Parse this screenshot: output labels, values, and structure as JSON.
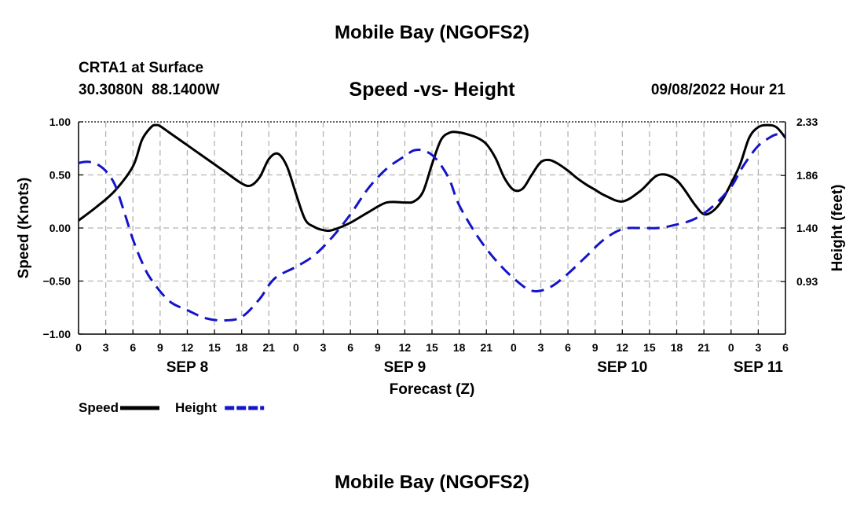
{
  "header": {
    "title_top": "Mobile Bay (NGOFS2)",
    "station": "CRTA1 at Surface",
    "coords": "30.3080N  88.1400W",
    "chart_title": "Speed -vs- Height",
    "timestamp": "09/08/2022 Hour 21",
    "title_bottom": "Mobile Bay (NGOFS2)"
  },
  "chart_data": {
    "type": "line",
    "xlabel": "Forecast (Z)",
    "ylabel_left": "Speed (Knots)",
    "ylabel_right": "Height (feet)",
    "xlim_hours": [
      0,
      78
    ],
    "x_tick_hours": [
      0,
      3,
      6,
      9,
      12,
      15,
      18,
      21,
      24,
      27,
      30,
      33,
      36,
      39,
      42,
      45,
      48,
      51,
      54,
      57,
      60,
      63,
      66,
      69,
      72,
      75,
      78
    ],
    "x_tick_labels": [
      "0",
      "3",
      "6",
      "9",
      "12",
      "15",
      "18",
      "21",
      "0",
      "3",
      "6",
      "9",
      "12",
      "15",
      "18",
      "21",
      "0",
      "3",
      "6",
      "9",
      "12",
      "15",
      "18",
      "21",
      "0",
      "3",
      "6"
    ],
    "date_labels": [
      {
        "hour": 12,
        "label": "SEP 8"
      },
      {
        "hour": 36,
        "label": "SEP 9"
      },
      {
        "hour": 60,
        "label": "SEP 10"
      },
      {
        "hour": 75,
        "label": "SEP 11"
      }
    ],
    "ylim_left": [
      -1.0,
      1.0
    ],
    "y_ticks_left": [
      -1.0,
      -0.5,
      0.0,
      0.5,
      1.0
    ],
    "y_tick_labels_left": [
      "−1.00",
      "−0.50",
      "0.00",
      "0.50",
      "1.00"
    ],
    "ylim_right": [
      0.47,
      2.33
    ],
    "y_ticks_right": [
      0.93,
      1.4,
      1.86,
      2.33
    ],
    "y_tick_labels_right": [
      "0.93",
      "1.40",
      "1.86",
      "2.33"
    ],
    "grid": true,
    "legend_placement": "bottom-left",
    "series": [
      {
        "name": "Speed",
        "axis": "left",
        "color": "#000000",
        "dash": "solid",
        "x": [
          0,
          2,
          4,
          6,
          7,
          8,
          8.5,
          9,
          10,
          12,
          14,
          16,
          18,
          19,
          20,
          21,
          22,
          23,
          24,
          25,
          26,
          27,
          28,
          30,
          32,
          34,
          36,
          37,
          38,
          39,
          40,
          41,
          42,
          43,
          44,
          45,
          46,
          47,
          48,
          49,
          50,
          51,
          52,
          53,
          54,
          55,
          56,
          57,
          58,
          60,
          62,
          64,
          66,
          68,
          69,
          70,
          71,
          72,
          73,
          74,
          75,
          76,
          77,
          78
        ],
        "y": [
          0.07,
          0.2,
          0.35,
          0.58,
          0.83,
          0.95,
          0.97,
          0.96,
          0.9,
          0.78,
          0.66,
          0.54,
          0.42,
          0.4,
          0.48,
          0.65,
          0.7,
          0.58,
          0.32,
          0.08,
          0.01,
          -0.02,
          -0.02,
          0.05,
          0.15,
          0.24,
          0.24,
          0.25,
          0.34,
          0.6,
          0.83,
          0.9,
          0.9,
          0.88,
          0.85,
          0.79,
          0.66,
          0.47,
          0.36,
          0.37,
          0.5,
          0.62,
          0.64,
          0.6,
          0.54,
          0.47,
          0.41,
          0.36,
          0.31,
          0.25,
          0.35,
          0.5,
          0.45,
          0.22,
          0.13,
          0.16,
          0.26,
          0.42,
          0.6,
          0.85,
          0.95,
          0.97,
          0.95,
          0.85
        ]
      },
      {
        "name": "Height",
        "axis": "right",
        "color": "#1414c8",
        "dash": "dashed",
        "x": [
          0,
          1,
          2,
          3,
          4,
          5,
          6,
          7,
          8,
          10,
          12,
          14,
          16,
          18,
          20,
          21,
          22,
          24,
          26,
          28,
          30,
          32,
          34,
          36,
          37,
          38,
          39,
          40,
          41,
          42,
          44,
          46,
          48,
          50,
          52,
          54,
          56,
          58,
          60,
          62,
          64,
          66,
          68,
          70,
          72,
          73,
          74,
          75,
          76,
          77,
          78
        ],
        "y": [
          1.97,
          1.98,
          1.96,
          1.9,
          1.78,
          1.55,
          1.3,
          1.1,
          0.95,
          0.76,
          0.68,
          0.61,
          0.59,
          0.62,
          0.78,
          0.9,
          0.98,
          1.06,
          1.16,
          1.32,
          1.52,
          1.75,
          1.92,
          2.03,
          2.08,
          2.08,
          2.04,
          1.95,
          1.81,
          1.6,
          1.33,
          1.12,
          0.96,
          0.85,
          0.88,
          1.0,
          1.15,
          1.3,
          1.39,
          1.4,
          1.4,
          1.43,
          1.48,
          1.59,
          1.76,
          1.9,
          2.02,
          2.12,
          2.18,
          2.22,
          2.21
        ]
      }
    ]
  }
}
